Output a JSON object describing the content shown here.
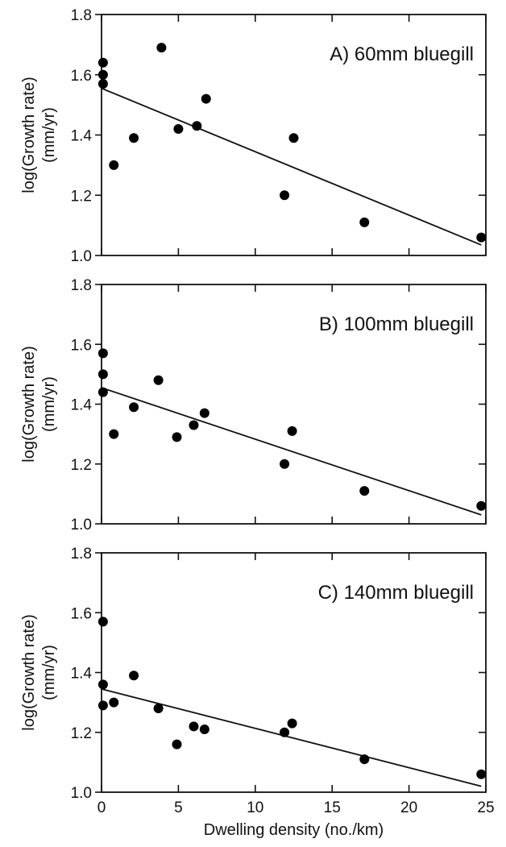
{
  "chart_data": [
    {
      "type": "scatter",
      "title": "A) 60mm bluegill",
      "ylabel_line1": "log(Growth rate)",
      "ylabel_line2": "(mm/yr)",
      "xlim": [
        0,
        25
      ],
      "ylim": [
        1.0,
        1.8
      ],
      "yticks": [
        "1.0",
        "1.2",
        "1.4",
        "1.6",
        "1.8"
      ],
      "grid": false,
      "points": [
        {
          "x": 0.1,
          "y": 1.64
        },
        {
          "x": 0.1,
          "y": 1.6
        },
        {
          "x": 0.1,
          "y": 1.57
        },
        {
          "x": 0.8,
          "y": 1.3
        },
        {
          "x": 2.1,
          "y": 1.39
        },
        {
          "x": 3.9,
          "y": 1.69
        },
        {
          "x": 5.0,
          "y": 1.42
        },
        {
          "x": 6.2,
          "y": 1.43
        },
        {
          "x": 6.8,
          "y": 1.52
        },
        {
          "x": 11.9,
          "y": 1.2
        },
        {
          "x": 12.5,
          "y": 1.39
        },
        {
          "x": 17.1,
          "y": 1.11
        },
        {
          "x": 24.7,
          "y": 1.06
        }
      ],
      "fit_line": {
        "x": [
          0,
          24.7
        ],
        "y": [
          1.555,
          1.035
        ]
      }
    },
    {
      "type": "scatter",
      "title": "B) 100mm bluegill",
      "ylabel_line1": "log(Growth rate)",
      "ylabel_line2": "(mm/yr)",
      "xlim": [
        0,
        25
      ],
      "ylim": [
        1.0,
        1.8
      ],
      "yticks": [
        "1.0",
        "1.2",
        "1.4",
        "1.6",
        "1.8"
      ],
      "grid": false,
      "points": [
        {
          "x": 0.1,
          "y": 1.57
        },
        {
          "x": 0.1,
          "y": 1.5
        },
        {
          "x": 0.1,
          "y": 1.44
        },
        {
          "x": 0.8,
          "y": 1.3
        },
        {
          "x": 2.1,
          "y": 1.39
        },
        {
          "x": 3.7,
          "y": 1.48
        },
        {
          "x": 4.9,
          "y": 1.29
        },
        {
          "x": 6.0,
          "y": 1.33
        },
        {
          "x": 6.7,
          "y": 1.37
        },
        {
          "x": 11.9,
          "y": 1.2
        },
        {
          "x": 12.4,
          "y": 1.31
        },
        {
          "x": 17.1,
          "y": 1.11
        },
        {
          "x": 24.7,
          "y": 1.06
        }
      ],
      "fit_line": {
        "x": [
          0,
          24.7
        ],
        "y": [
          1.455,
          1.03
        ]
      }
    },
    {
      "type": "scatter",
      "title": "C) 140mm bluegill",
      "ylabel_line1": "log(Growth rate)",
      "ylabel_line2": "(mm/yr)",
      "xlabel": "Dwelling density (no./km)",
      "xlim": [
        0,
        25
      ],
      "ylim": [
        1.0,
        1.8
      ],
      "xticks": [
        "0",
        "5",
        "10",
        "15",
        "20",
        "25"
      ],
      "yticks": [
        "1.0",
        "1.2",
        "1.4",
        "1.6",
        "1.8"
      ],
      "grid": false,
      "points": [
        {
          "x": 0.1,
          "y": 1.57
        },
        {
          "x": 0.1,
          "y": 1.36
        },
        {
          "x": 0.1,
          "y": 1.29
        },
        {
          "x": 0.8,
          "y": 1.3
        },
        {
          "x": 2.1,
          "y": 1.39
        },
        {
          "x": 3.7,
          "y": 1.28
        },
        {
          "x": 4.9,
          "y": 1.16
        },
        {
          "x": 6.0,
          "y": 1.22
        },
        {
          "x": 6.7,
          "y": 1.21
        },
        {
          "x": 11.9,
          "y": 1.2
        },
        {
          "x": 12.4,
          "y": 1.23
        },
        {
          "x": 17.1,
          "y": 1.11
        },
        {
          "x": 24.7,
          "y": 1.06
        }
      ],
      "fit_line": {
        "x": [
          0,
          24.7
        ],
        "y": [
          1.345,
          1.02
        ]
      }
    }
  ]
}
